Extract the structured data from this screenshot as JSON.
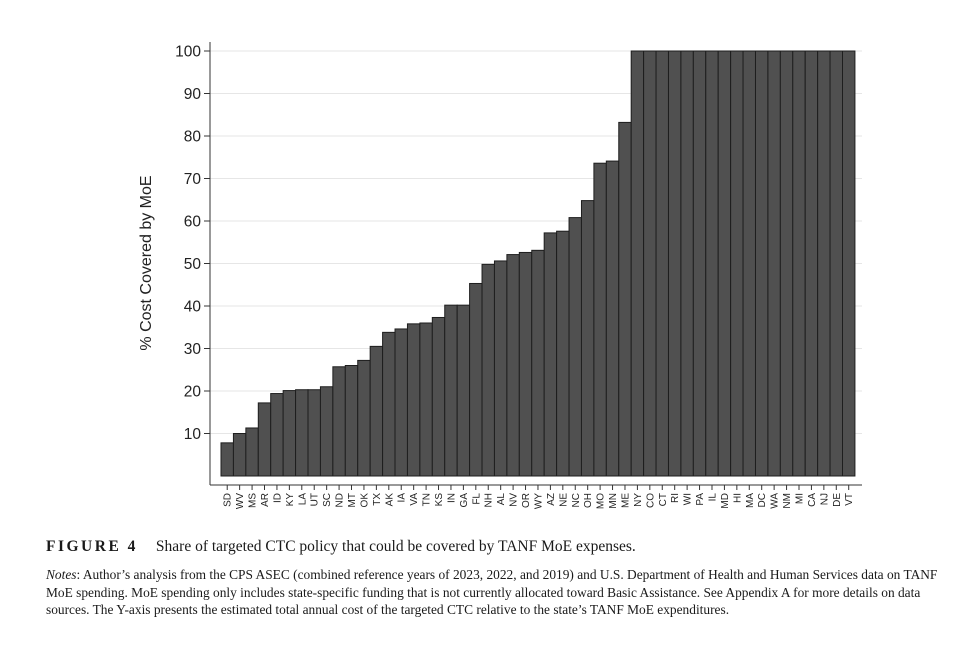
{
  "chart_data": {
    "type": "bar",
    "ylabel": "% Cost Covered by MoE",
    "xlabel": "",
    "ylim": [
      0,
      100
    ],
    "yticks": [
      10,
      20,
      30,
      40,
      50,
      60,
      70,
      80,
      90,
      100
    ],
    "grid": true,
    "bar_color": "#505050",
    "categories": [
      "SD",
      "WV",
      "MS",
      "AR",
      "ID",
      "KY",
      "LA",
      "UT",
      "SC",
      "ND",
      "MT",
      "OK",
      "TX",
      "AK",
      "IA",
      "VA",
      "TN",
      "KS",
      "IN",
      "GA",
      "FL",
      "NH",
      "AL",
      "NV",
      "OR",
      "WY",
      "AZ",
      "NE",
      "NC",
      "OH",
      "MO",
      "MN",
      "ME",
      "NY",
      "CO",
      "CT",
      "RI",
      "WI",
      "PA",
      "IL",
      "MD",
      "HI",
      "MA",
      "DC",
      "WA",
      "NM",
      "MI",
      "CA",
      "NJ",
      "DE",
      "VT"
    ],
    "values": [
      7.8,
      10,
      11.3,
      17.2,
      19.4,
      20.1,
      20.3,
      20.3,
      21,
      25.7,
      26,
      27.2,
      30.5,
      33.8,
      34.6,
      35.8,
      36,
      37.3,
      40.2,
      40.2,
      45.3,
      49.8,
      50.6,
      52.1,
      52.6,
      53.1,
      57.2,
      57.6,
      60.8,
      64.8,
      73.6,
      74.1,
      83.2,
      100,
      100,
      100,
      100,
      100,
      100,
      100,
      100,
      100,
      100,
      100,
      100,
      100,
      100,
      100,
      100,
      100,
      100
    ]
  },
  "caption": {
    "label": "FIGURE 4",
    "text": "Share of targeted CTC policy that could be covered by TANF MoE expenses."
  },
  "notes": {
    "label": "Notes",
    "text": ": Author’s analysis from the CPS ASEC (combined reference years of 2023, 2022, and 2019) and U.S. Department of Health and Human Services data on TANF MoE spending. MoE spending only includes state-specific funding that is not currently allocated toward Basic Assistance. See Appendix A for more details on data sources. The Y-axis presents the estimated total annual cost of the targeted CTC relative to the state’s TANF MoE expenditures."
  }
}
